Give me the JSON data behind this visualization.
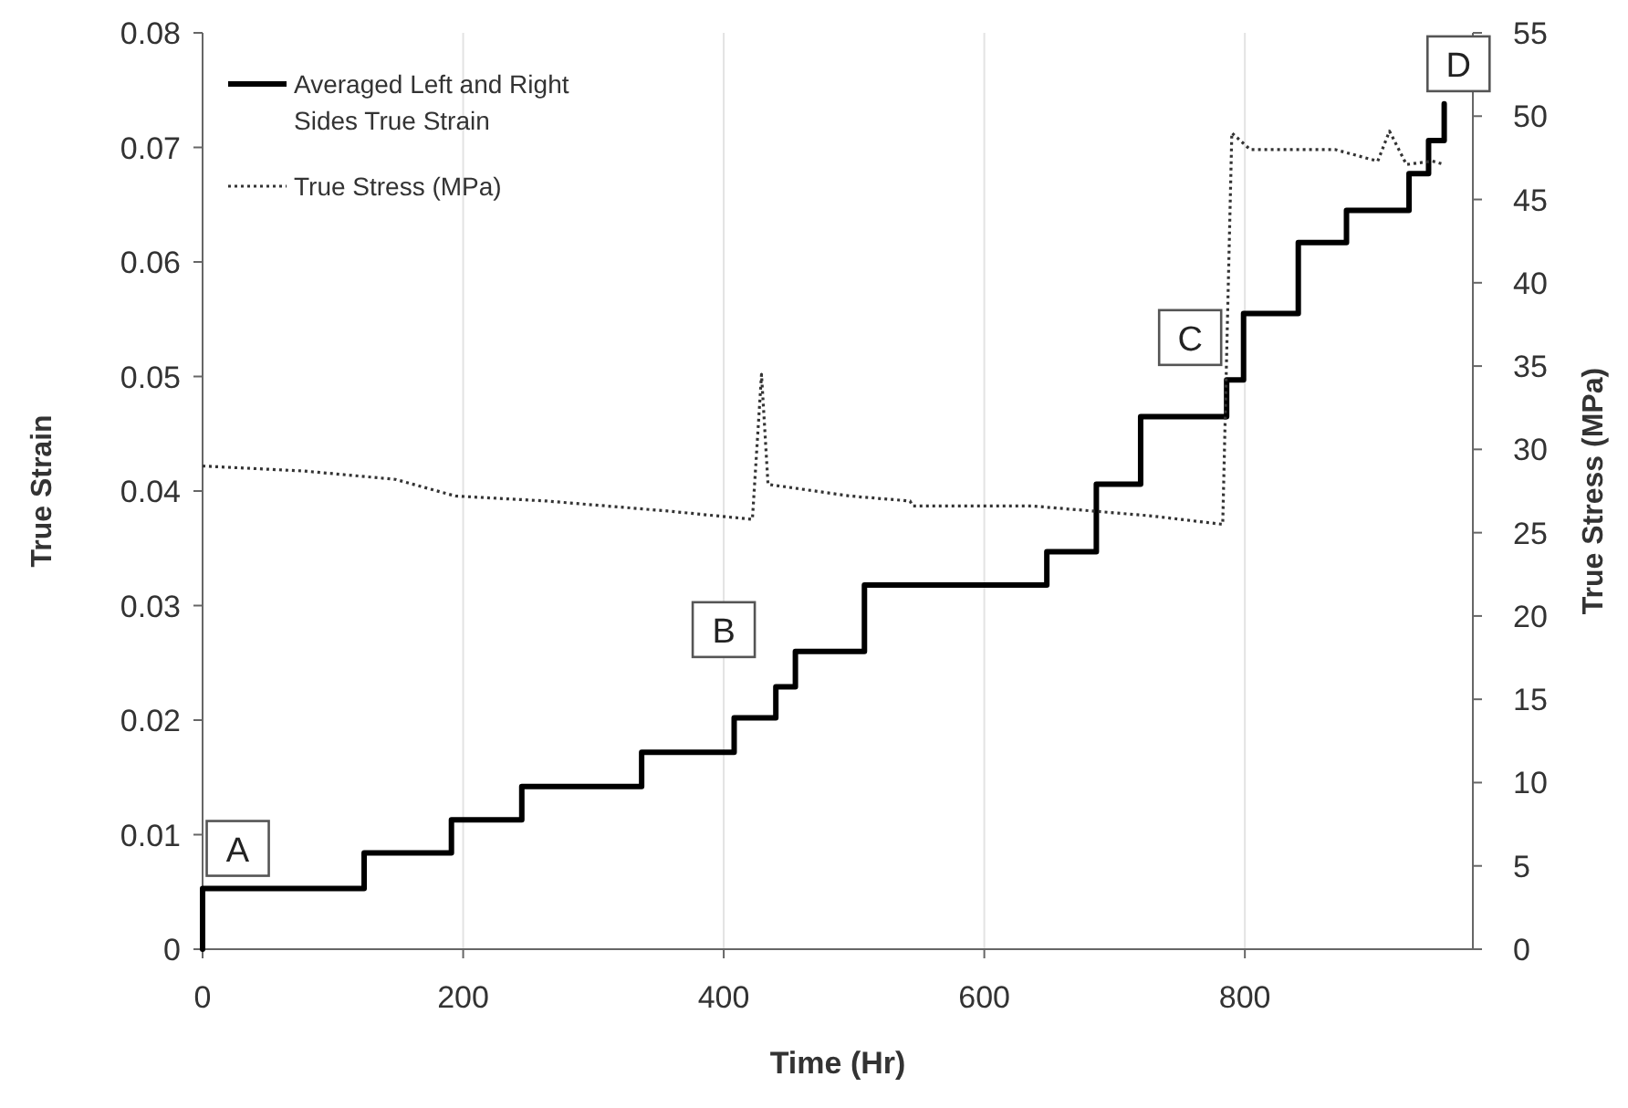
{
  "chart_data": {
    "type": "step",
    "xlabel": "Time (Hr)",
    "ylabel": "True Strain",
    "y2label": "True Stress (MPa)",
    "xlim": [
      0,
      975
    ],
    "xticks": [
      0,
      200,
      400,
      600,
      800
    ],
    "ylim": [
      0,
      0.08
    ],
    "yticks": [
      0,
      0.01,
      0.02,
      0.03,
      0.04,
      0.05,
      0.06,
      0.07,
      0.08
    ],
    "y2lim": [
      0,
      55
    ],
    "y2ticks": [
      0,
      5,
      10,
      15,
      20,
      25,
      30,
      35,
      40,
      45,
      50,
      55
    ],
    "grid": "x",
    "legend": "top left",
    "series": [
      {
        "name": "Averaged Left and Right Sides True Strain",
        "color": "#000000",
        "line_style": "solid",
        "x": [
          0,
          0,
          124,
          191,
          245,
          337,
          408,
          440,
          455,
          508,
          648,
          686,
          720,
          786,
          799,
          841,
          878,
          926,
          941,
          953
        ],
        "values": [
          0,
          0.0053,
          0.0084,
          0.0113,
          0.0142,
          0.0172,
          0.0202,
          0.0229,
          0.026,
          0.0318,
          0.0347,
          0.0406,
          0.0465,
          0.0497,
          0.0555,
          0.0617,
          0.0645,
          0.0677,
          0.0706,
          0.0738
        ]
      },
      {
        "name": "True Stress (MPa)",
        "type": "line",
        "axis": "y2",
        "color": "#333333",
        "line_style": "dotted",
        "x": [
          0,
          78,
          148,
          194,
          264,
          357,
          422,
          429,
          434,
          497,
          543,
          545,
          637,
          683,
          729,
          783,
          790,
          804,
          869,
          902,
          911,
          924,
          944,
          953
        ],
        "values": [
          29.0,
          28.7,
          28.2,
          27.2,
          26.9,
          26.3,
          25.8,
          34.5,
          27.9,
          27.2,
          26.9,
          26.6,
          26.6,
          26.3,
          26.0,
          25.5,
          49.0,
          48.0,
          48.0,
          47.3,
          49.1,
          47.1,
          47.3,
          47.1
        ]
      }
    ],
    "annotations": [
      {
        "text": "A",
        "x": 27,
        "y": 0.0088
      },
      {
        "text": "B",
        "x": 400,
        "y": 0.0279
      },
      {
        "text": "C",
        "x": 758,
        "y": 0.0534
      },
      {
        "text": "D",
        "x": 964,
        "y": 0.0773
      }
    ]
  }
}
